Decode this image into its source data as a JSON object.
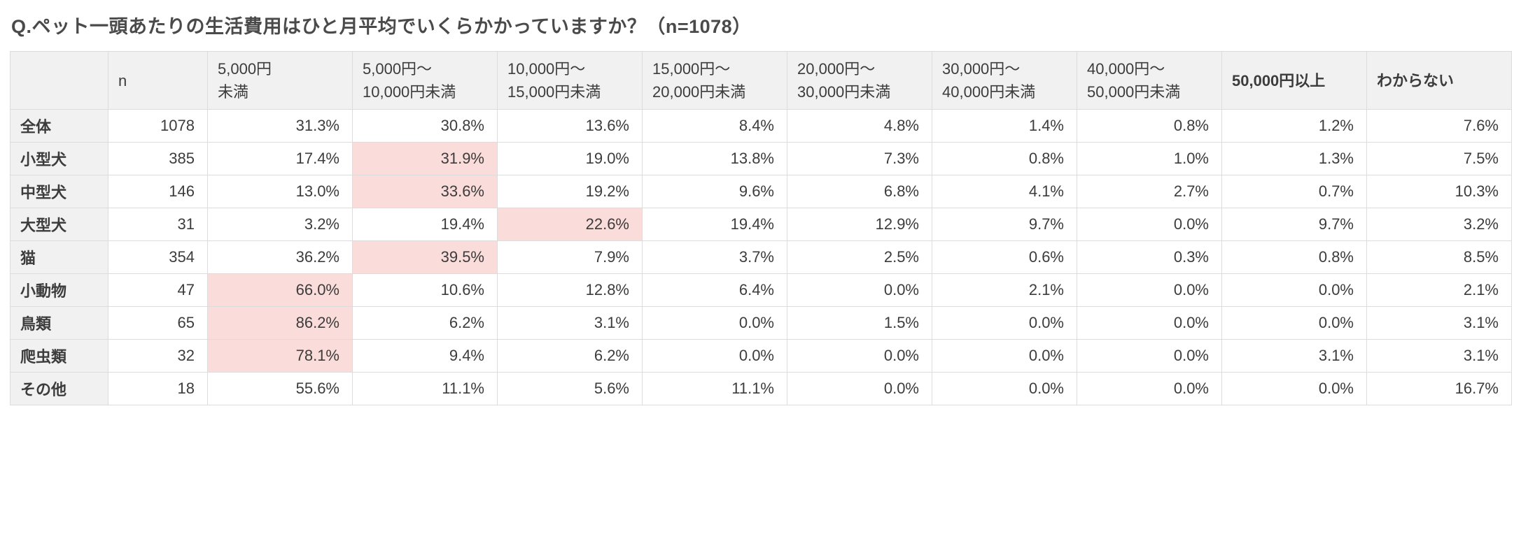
{
  "title": "Q.ペット一頭あたりの生活費用はひと月平均でいくらかかっていますか？（n=1078）",
  "colors": {
    "highlight": "#fadcda",
    "header_bg": "#f1f1f1",
    "border": "#dcdcdc",
    "title_color": "#4a4a4a"
  },
  "table": {
    "columns": [
      "",
      "n",
      "5,000円\n未満",
      "5,000円〜\n10,000円未満",
      "10,000円〜\n15,000円未満",
      "15,000円〜\n20,000円未満",
      "20,000円〜\n30,000円未満",
      "30,000円〜\n40,000円未満",
      "40,000円〜\n50,000円未満",
      "50,000円以上",
      "わからない"
    ],
    "rows": [
      {
        "label": "全体",
        "n": "1078",
        "values": [
          "31.3%",
          "30.8%",
          "13.6%",
          "8.4%",
          "4.8%",
          "1.4%",
          "0.8%",
          "1.2%",
          "7.6%"
        ],
        "highlight": -1
      },
      {
        "label": "小型犬",
        "n": "385",
        "values": [
          "17.4%",
          "31.9%",
          "19.0%",
          "13.8%",
          "7.3%",
          "0.8%",
          "1.0%",
          "1.3%",
          "7.5%"
        ],
        "highlight": 1
      },
      {
        "label": "中型犬",
        "n": "146",
        "values": [
          "13.0%",
          "33.6%",
          "19.2%",
          "9.6%",
          "6.8%",
          "4.1%",
          "2.7%",
          "0.7%",
          "10.3%"
        ],
        "highlight": 1
      },
      {
        "label": "大型犬",
        "n": "31",
        "values": [
          "3.2%",
          "19.4%",
          "22.6%",
          "19.4%",
          "12.9%",
          "9.7%",
          "0.0%",
          "9.7%",
          "3.2%"
        ],
        "highlight": 2
      },
      {
        "label": "猫",
        "n": "354",
        "values": [
          "36.2%",
          "39.5%",
          "7.9%",
          "3.7%",
          "2.5%",
          "0.6%",
          "0.3%",
          "0.8%",
          "8.5%"
        ],
        "highlight": 1
      },
      {
        "label": "小動物",
        "n": "47",
        "values": [
          "66.0%",
          "10.6%",
          "12.8%",
          "6.4%",
          "0.0%",
          "2.1%",
          "0.0%",
          "0.0%",
          "2.1%"
        ],
        "highlight": 0
      },
      {
        "label": "鳥類",
        "n": "65",
        "values": [
          "86.2%",
          "6.2%",
          "3.1%",
          "0.0%",
          "1.5%",
          "0.0%",
          "0.0%",
          "0.0%",
          "3.1%"
        ],
        "highlight": 0
      },
      {
        "label": "爬虫類",
        "n": "32",
        "values": [
          "78.1%",
          "9.4%",
          "6.2%",
          "0.0%",
          "0.0%",
          "0.0%",
          "0.0%",
          "3.1%",
          "3.1%"
        ],
        "highlight": 0
      },
      {
        "label": "その他",
        "n": "18",
        "values": [
          "55.6%",
          "11.1%",
          "5.6%",
          "11.1%",
          "0.0%",
          "0.0%",
          "0.0%",
          "0.0%",
          "16.7%"
        ],
        "highlight": -1
      }
    ]
  },
  "chart_data": {
    "type": "table",
    "title": "Q.ペット一頭あたりの生活費用はひと月平均でいくらかかっていますか？（n=1078）",
    "total_n": 1078,
    "columns": [
      "n",
      "5,000円未満",
      "5,000円〜10,000円未満",
      "10,000円〜15,000円未満",
      "15,000円〜20,000円未満",
      "20,000円〜30,000円未満",
      "30,000円〜40,000円未満",
      "40,000円〜50,000円未満",
      "50,000円以上",
      "わからない"
    ],
    "rows": [
      {
        "category": "全体",
        "n": 1078,
        "values_pct": [
          31.3,
          30.8,
          13.6,
          8.4,
          4.8,
          1.4,
          0.8,
          1.2,
          7.6
        ]
      },
      {
        "category": "小型犬",
        "n": 385,
        "values_pct": [
          17.4,
          31.9,
          19.0,
          13.8,
          7.3,
          0.8,
          1.0,
          1.3,
          7.5
        ]
      },
      {
        "category": "中型犬",
        "n": 146,
        "values_pct": [
          13.0,
          33.6,
          19.2,
          9.6,
          6.8,
          4.1,
          2.7,
          0.7,
          10.3
        ]
      },
      {
        "category": "大型犬",
        "n": 31,
        "values_pct": [
          3.2,
          19.4,
          22.6,
          19.4,
          12.9,
          9.7,
          0.0,
          9.7,
          3.2
        ]
      },
      {
        "category": "猫",
        "n": 354,
        "values_pct": [
          36.2,
          39.5,
          7.9,
          3.7,
          2.5,
          0.6,
          0.3,
          0.8,
          8.5
        ]
      },
      {
        "category": "小動物",
        "n": 47,
        "values_pct": [
          66.0,
          10.6,
          12.8,
          6.4,
          0.0,
          2.1,
          0.0,
          0.0,
          2.1
        ]
      },
      {
        "category": "鳥類",
        "n": 65,
        "values_pct": [
          86.2,
          6.2,
          3.1,
          0.0,
          1.5,
          0.0,
          0.0,
          0.0,
          3.1
        ]
      },
      {
        "category": "爬虫類",
        "n": 32,
        "values_pct": [
          78.1,
          9.4,
          6.2,
          0.0,
          0.0,
          0.0,
          0.0,
          3.1,
          3.1
        ]
      },
      {
        "category": "その他",
        "n": 18,
        "values_pct": [
          55.6,
          11.1,
          5.6,
          11.1,
          0.0,
          0.0,
          0.0,
          0.0,
          16.7
        ]
      }
    ],
    "highlighted_max_cells": "per-row max cost bracket shaded pink (rows 小型犬〜爬虫類)"
  }
}
